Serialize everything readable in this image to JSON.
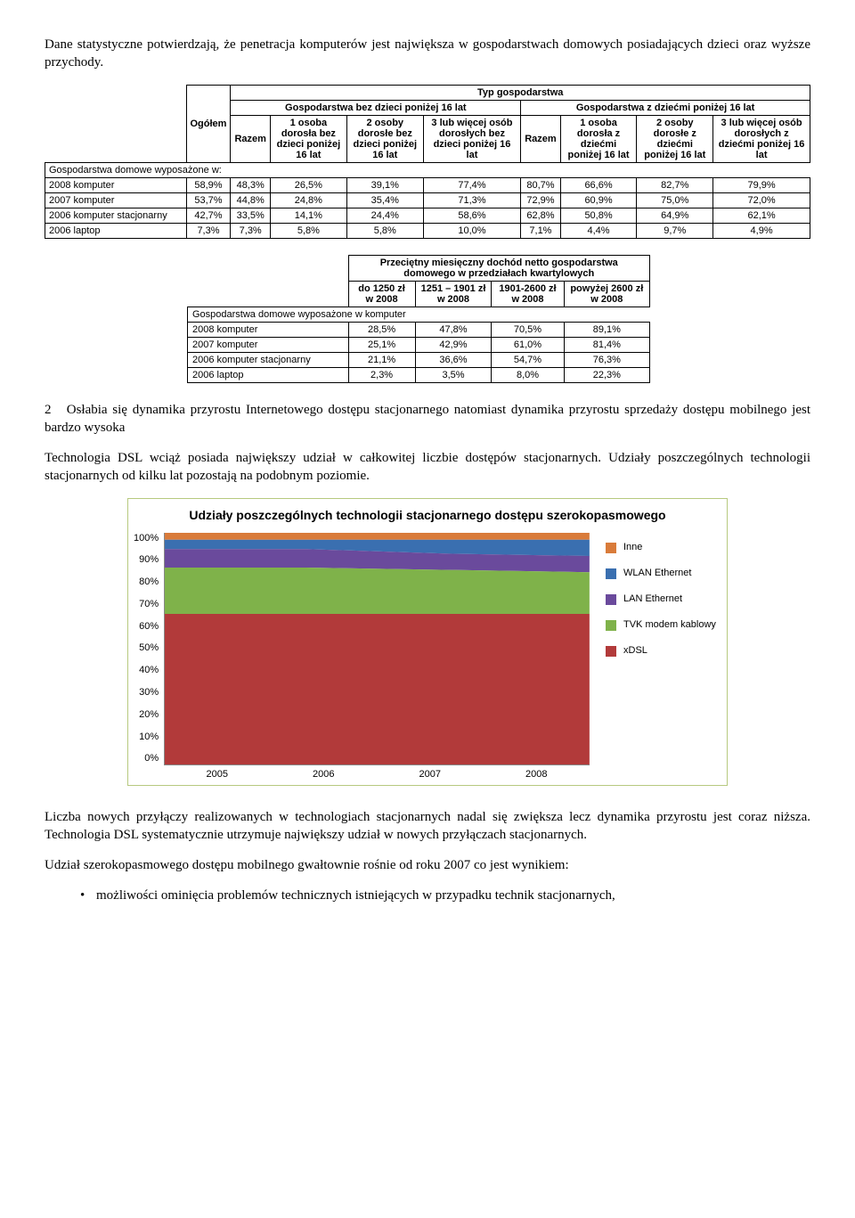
{
  "intro": "Dane statystyczne potwierdzają, że penetracja komputerów jest największa w gospodarstwach domowych posiadających dzieci oraz wyższe przychody.",
  "table1": {
    "top_header": "Typ gospodarstwa",
    "group_a": "Gospodarstwa bez dzieci poniżej 16 lat",
    "group_b": "Gospodarstwa z dziećmi poniżej 16 lat",
    "rowhead": "Gospodarstwa domowe wyposażone w:",
    "cols": [
      "Ogółem",
      "Razem",
      "1 osoba dorosła bez dzieci poniżej 16 lat",
      "2 osoby dorosłe bez dzieci poniżej 16 lat",
      "3 lub więcej osób dorosłych bez dzieci poniżej 16 lat",
      "Razem",
      "1 osoba dorosła z dziećmi poniżej 16 lat",
      "2 osoby dorosłe z dziećmi poniżej 16 lat",
      "3 lub więcej osób dorosłych z dziećmi poniżej 16 lat"
    ],
    "rows": [
      {
        "label": "2008 komputer",
        "v": [
          "58,9%",
          "48,3%",
          "26,5%",
          "39,1%",
          "77,4%",
          "80,7%",
          "66,6%",
          "82,7%",
          "79,9%"
        ]
      },
      {
        "label": "2007 komputer",
        "v": [
          "53,7%",
          "44,8%",
          "24,8%",
          "35,4%",
          "71,3%",
          "72,9%",
          "60,9%",
          "75,0%",
          "72,0%"
        ]
      },
      {
        "label": "2006 komputer stacjonarny",
        "v": [
          "42,7%",
          "33,5%",
          "14,1%",
          "24,4%",
          "58,6%",
          "62,8%",
          "50,8%",
          "64,9%",
          "62,1%"
        ]
      },
      {
        "label": "2006 laptop",
        "v": [
          "7,3%",
          "7,3%",
          "5,8%",
          "5,8%",
          "10,0%",
          "7,1%",
          "4,4%",
          "9,7%",
          "4,9%"
        ]
      }
    ]
  },
  "table2": {
    "top_header": "Przeciętny miesięczny dochód netto gospodarstwa domowego w przedziałach kwartylowych",
    "rowhead": "Gospodarstwa domowe wyposażone w komputer",
    "cols": [
      "do 1250 zł w 2008",
      "1251 – 1901 zł w 2008",
      "1901-2600 zł w 2008",
      "powyżej 2600 zł w 2008"
    ],
    "rows": [
      {
        "label": "2008 komputer",
        "v": [
          "28,5%",
          "47,8%",
          "70,5%",
          "89,1%"
        ]
      },
      {
        "label": "2007 komputer",
        "v": [
          "25,1%",
          "42,9%",
          "61,0%",
          "81,4%"
        ]
      },
      {
        "label": "2006 komputer stacjonarny",
        "v": [
          "21,1%",
          "36,6%",
          "54,7%",
          "76,3%"
        ]
      },
      {
        "label": "2006 laptop",
        "v": [
          "2,3%",
          "3,5%",
          "8,0%",
          "22,3%"
        ]
      }
    ]
  },
  "heading2_num": "2",
  "heading2_text": "Osłabia się dynamika przyrostu Internetowego dostępu stacjonarnego natomiast dynamika przyrostu sprzedaży dostępu mobilnego jest bardzo wysoka",
  "p2": "Technologia DSL wciąż posiada największy udział w całkowitej liczbie dostępów stacjonarnych. Udziały poszczególnych technologii stacjonarnych od kilku lat pozostają na podobnym poziomie.",
  "chart": {
    "title": "Udziały poszczególnych technologii stacjonarnego dostępu szerokopasmowego",
    "ylabels": [
      "100%",
      "90%",
      "80%",
      "70%",
      "60%",
      "50%",
      "40%",
      "30%",
      "20%",
      "10%",
      "0%"
    ],
    "xlabels": [
      "2005",
      "2006",
      "2007",
      "2008"
    ],
    "legend": [
      {
        "label": "Inne",
        "color": "#d97b3a"
      },
      {
        "label": "WLAN Ethernet",
        "color": "#3a6fb0"
      },
      {
        "label": "LAN Ethernet",
        "color": "#6a4a9c"
      },
      {
        "label": "TVK modem kablowy",
        "color": "#7fb24a"
      },
      {
        "label": "xDSL",
        "color": "#b23a3a"
      }
    ],
    "series_cum": {
      "xdsl": [
        65,
        65,
        65,
        65
      ],
      "tvk": [
        85,
        85,
        84,
        83
      ],
      "lan": [
        93,
        93,
        91,
        90
      ],
      "wlan": [
        97,
        97,
        97,
        97
      ],
      "inne": [
        100,
        100,
        100,
        100
      ]
    },
    "colors": {
      "xdsl": "#b23a3a",
      "tvk": "#7fb24a",
      "lan": "#6a4a9c",
      "wlan": "#3a6fb0",
      "inne": "#d97b3a"
    },
    "background": "#ffffff",
    "grid_color": "#d0d0d0"
  },
  "p3": "Liczba nowych przyłączy realizowanych w technologiach stacjonarnych nadal się zwiększa lecz dynamika przyrostu jest coraz niższa. Technologia DSL systematycznie utrzymuje największy udział w nowych przyłączach stacjonarnych.",
  "p4": "Udział szerokopasmowego dostępu mobilnego gwałtownie rośnie od roku 2007 co jest wynikiem:",
  "bullet1": "możliwości ominięcia problemów technicznych istniejących w przypadku technik stacjonarnych,"
}
